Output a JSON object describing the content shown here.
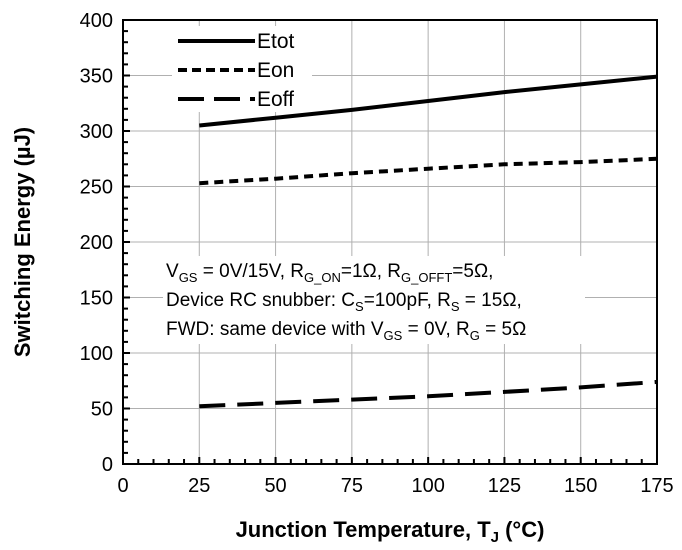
{
  "chart_data": {
    "type": "line",
    "xlabel_main": "Junction Temperature, T",
    "xlabel_sub": "J",
    "xlabel_unit": " (°C)",
    "ylabel": "Switching Energy (µJ)",
    "xlim": [
      0,
      175
    ],
    "ylim": [
      0,
      400
    ],
    "x_ticks": [
      "0",
      "25",
      "50",
      "75",
      "100",
      "125",
      "150",
      "175"
    ],
    "y_ticks": [
      "0",
      "50",
      "100",
      "150",
      "200",
      "250",
      "300",
      "350",
      "400"
    ],
    "grid": "vertical and horizontal major gridlines",
    "legend_position": "top-left",
    "x": [
      25,
      50,
      75,
      100,
      125,
      150,
      175
    ],
    "series": [
      {
        "name": "Etot",
        "style": "solid",
        "values": [
          305,
          312,
          319,
          327,
          335,
          342,
          349
        ]
      },
      {
        "name": "Eon",
        "style": "short-dash",
        "values": [
          253,
          257,
          262,
          266,
          270,
          272,
          275
        ]
      },
      {
        "name": "Eoff",
        "style": "long-dash",
        "values": [
          52,
          55,
          58,
          61,
          65,
          69,
          74
        ]
      }
    ],
    "annotation": {
      "line1": {
        "v": "V",
        "gs": "GS",
        "t1": " = 0V/15V, R",
        "gon": "G_ON",
        "t2": "=1Ω, R",
        "goff": "G_OFFT",
        "t3": "=5Ω,"
      },
      "line2": {
        "t1": "Device RC snubber: C",
        "s1": "S",
        "t2": "=100pF,   R",
        "s2": "S",
        "t3": " = 15Ω,"
      },
      "line3": {
        "t1": "FWD: same device with V",
        "gs": "GS",
        "t2": " = 0V, R",
        "g": "G",
        "t3": " = 5Ω"
      }
    }
  }
}
